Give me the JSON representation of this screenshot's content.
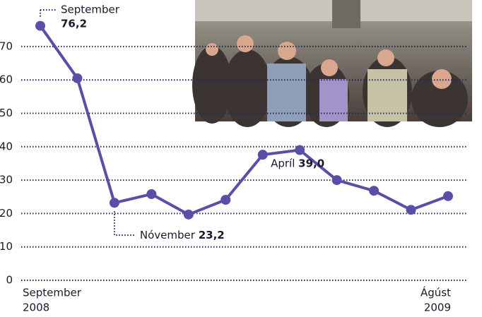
{
  "chart_data": {
    "type": "line",
    "categories": [
      "September",
      null,
      "Nóvember",
      null,
      null,
      null,
      null,
      "Apríl",
      null,
      null,
      null,
      "Ágúst"
    ],
    "x_label_years": [
      "2008",
      "2009"
    ],
    "series": [
      {
        "color": "#5a4fa6",
        "values": [
          76.2,
          60.5,
          23.2,
          25.8,
          19.7,
          24.1,
          37.6,
          39.0,
          30.0,
          26.8,
          21.1,
          25.2
        ],
        "value_labels": [
          "76,2",
          null,
          "23,2",
          null,
          null,
          null,
          null,
          "39,0",
          null,
          null,
          null,
          null
        ]
      }
    ],
    "ylim": [
      0,
      80
    ],
    "yticks": [
      0,
      10,
      20,
      30,
      40,
      50,
      60,
      70
    ],
    "grid": true
  }
}
